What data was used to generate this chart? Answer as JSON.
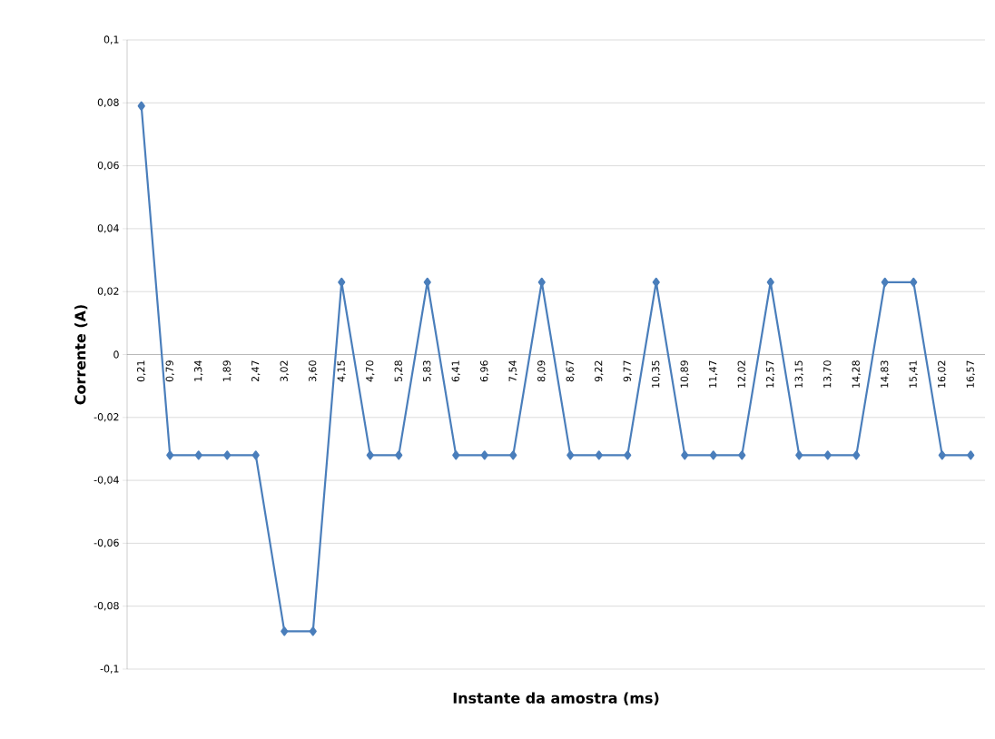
{
  "chart_data": {
    "type": "line",
    "xlabel": "Instante da amostra (ms)",
    "ylabel": "Corrente (A)",
    "categories": [
      "0,21",
      "0,79",
      "1,34",
      "1,89",
      "2,47",
      "3,02",
      "3,60",
      "4,15",
      "4,70",
      "5,28",
      "5,83",
      "6,41",
      "6,96",
      "7,54",
      "8,09",
      "8,67",
      "9,22",
      "9,77",
      "10,35",
      "10,89",
      "11,47",
      "12,02",
      "12,57",
      "13,15",
      "13,70",
      "14,28",
      "14,83",
      "15,41",
      "16,02",
      "16,57"
    ],
    "series": [
      {
        "color": "#4a7ebb",
        "values": [
          0.079,
          -0.032,
          -0.032,
          -0.032,
          -0.032,
          -0.088,
          -0.088,
          0.023,
          -0.032,
          -0.032,
          0.023,
          -0.032,
          -0.032,
          -0.032,
          0.023,
          -0.032,
          -0.032,
          -0.032,
          0.023,
          -0.032,
          -0.032,
          -0.032,
          0.023,
          -0.032,
          -0.032,
          -0.032,
          0.023,
          0.023,
          -0.032,
          -0.032
        ]
      }
    ],
    "ylim": [
      -0.1,
      0.1
    ],
    "yticks": [
      {
        "value": -0.1,
        "label": "-0,1"
      },
      {
        "value": -0.08,
        "label": "-0,08"
      },
      {
        "value": -0.06,
        "label": "-0,06"
      },
      {
        "value": -0.04,
        "label": "-0,04"
      },
      {
        "value": -0.02,
        "label": "-0,02"
      },
      0,
      {
        "value": 0.02,
        "label": "0,02"
      },
      {
        "value": 0.04,
        "label": "0,04"
      },
      {
        "value": 0.06,
        "label": "0,06"
      },
      {
        "value": 0.08,
        "label": "0,08"
      },
      {
        "value": 0.1,
        "label": "0,1"
      }
    ],
    "grid": "y",
    "marker": "diamond",
    "line_style": "solid"
  }
}
